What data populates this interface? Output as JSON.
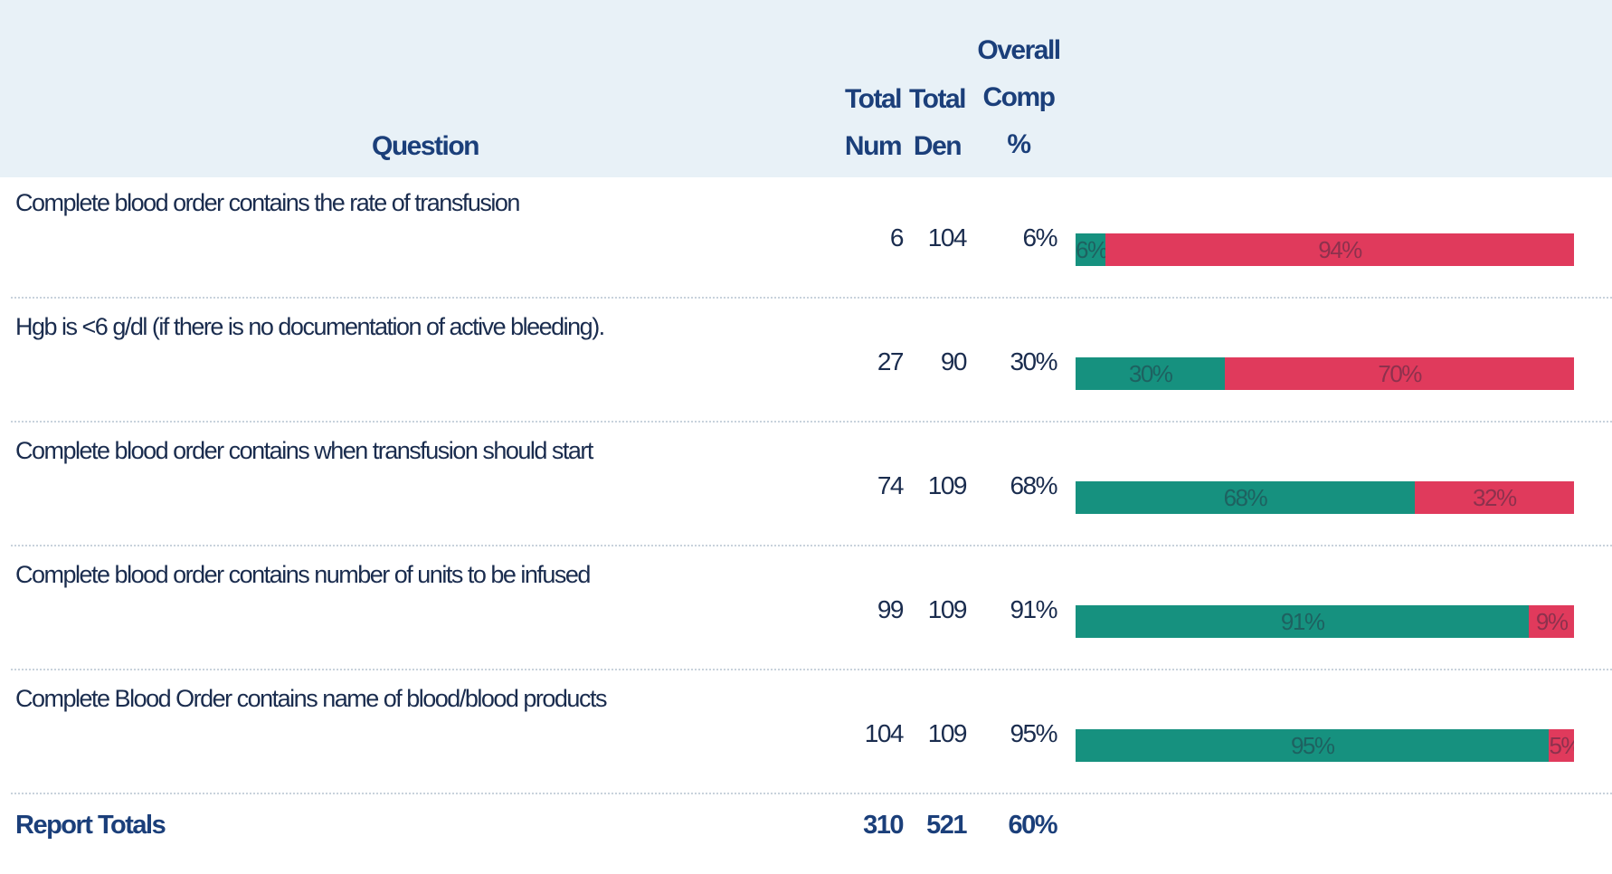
{
  "table": {
    "headers": [
      "Question",
      "Total Num",
      "Total Den",
      "Overall Comp %"
    ],
    "colors": [
      "#16917f",
      "#e03a5c"
    ],
    "rows": [
      {
        "question": "Complete blood order contains the rate of transfusion",
        "num": 6,
        "den": 104,
        "comp": "6%",
        "bar": {
          "values": [
            6,
            94
          ],
          "value_labels": [
            "6%",
            "94%"
          ]
        }
      },
      {
        "question": "Hgb is <6 g/dl (if there is no documentation of active bleeding).",
        "num": 27,
        "den": 90,
        "comp": "30%",
        "bar": {
          "values": [
            30,
            70
          ],
          "value_labels": [
            "30%",
            "70%"
          ]
        }
      },
      {
        "question": "Complete blood order contains when transfusion should start",
        "num": 74,
        "den": 109,
        "comp": "68%",
        "bar": {
          "values": [
            68,
            32
          ],
          "value_labels": [
            "68%",
            "32%"
          ]
        }
      },
      {
        "question": "Complete blood order contains number of units to be infused",
        "num": 99,
        "den": 109,
        "comp": "91%",
        "bar": {
          "values": [
            91,
            9
          ],
          "value_labels": [
            "91%",
            "9%"
          ]
        }
      },
      {
        "question": "Complete Blood Order contains name of blood/blood products",
        "num": 104,
        "den": 109,
        "comp": "95%",
        "bar": {
          "values": [
            95,
            5
          ],
          "value_labels": [
            "95%",
            "5%"
          ]
        }
      }
    ],
    "totals": {
      "label": "Report Totals",
      "num": 310,
      "den": 521,
      "comp": "60%"
    }
  }
}
